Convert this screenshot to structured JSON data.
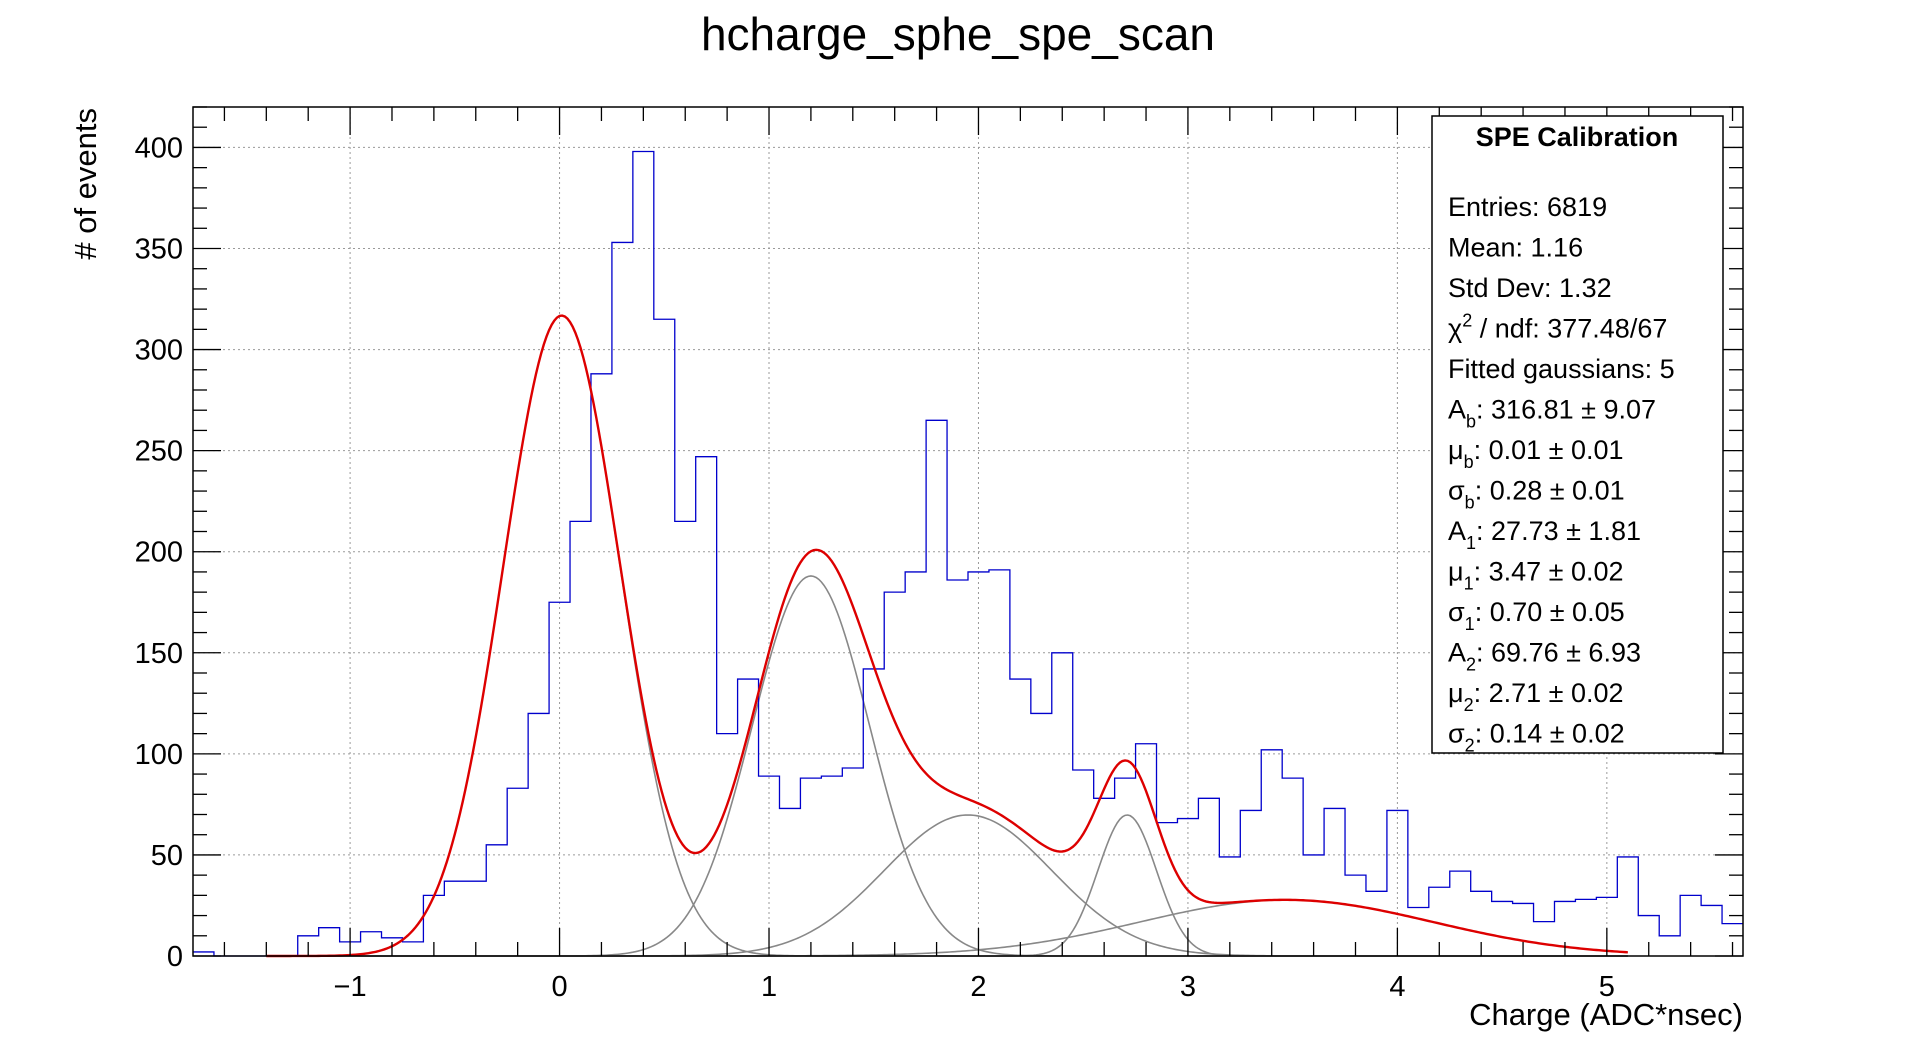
{
  "chart_data": {
    "type": "histogram",
    "title": "hcharge_sphe_spe_scan",
    "xlabel": "Charge (ADC*nsec)",
    "ylabel": "# of events",
    "xlim": [
      -1.75,
      5.65
    ],
    "ylim": [
      0,
      420
    ],
    "grid": true,
    "x_ticks": [
      -1,
      0,
      1,
      2,
      3,
      4,
      5
    ],
    "x_tick_labels": [
      "−1",
      "0",
      "1",
      "2",
      "3",
      "4",
      "5"
    ],
    "y_ticks": [
      0,
      50,
      100,
      150,
      200,
      250,
      300,
      350,
      400
    ],
    "y_tick_labels": [
      "0",
      "50",
      "100",
      "150",
      "200",
      "250",
      "300",
      "350",
      "400"
    ],
    "histogram": {
      "name": "hcharge_sphe_spe_scan",
      "color": "#0000cc",
      "bin_start": -1.75,
      "bin_width": 0.1,
      "counts": [
        2,
        0,
        0,
        0,
        0,
        10,
        14,
        7,
        12,
        9,
        7,
        30,
        37,
        37,
        55,
        83,
        120,
        175,
        215,
        288,
        353,
        398,
        315,
        215,
        247,
        110,
        137,
        89,
        73,
        88,
        89,
        93,
        142,
        180,
        190,
        265,
        186,
        190,
        191,
        137,
        120,
        150,
        92,
        78,
        88,
        105,
        66,
        68,
        78,
        49,
        72,
        102,
        88,
        50,
        73,
        40,
        32,
        72,
        24,
        34,
        42,
        32,
        27,
        26,
        17,
        27,
        28,
        29,
        49,
        20,
        10,
        30,
        25,
        16,
        6,
        11,
        17,
        13,
        12,
        17,
        17,
        13,
        12,
        14,
        10,
        15
      ]
    },
    "fit": {
      "color": "#dd0000",
      "range": [
        -1.4,
        5.1
      ],
      "components_color": "#888888",
      "components": [
        {
          "A": 316.81,
          "mu": 0.01,
          "sigma": 0.28
        },
        {
          "A": 188.0,
          "mu": 1.2,
          "sigma": 0.28
        },
        {
          "A": 69.76,
          "mu": 1.95,
          "sigma": 0.4
        },
        {
          "A": 69.76,
          "mu": 2.71,
          "sigma": 0.14
        },
        {
          "A": 27.73,
          "mu": 3.47,
          "sigma": 0.7
        }
      ]
    },
    "stats_box": {
      "placement": "top-right",
      "title": "SPE Calibration",
      "lines": [
        {
          "text": "Entries: 6819"
        },
        {
          "text": "Mean: 1.16"
        },
        {
          "text": "Std Dev: 1.32"
        },
        {
          "sym": "χ",
          "sup": "2",
          "text": " / ndf: 377.48/67"
        },
        {
          "text": "Fitted gaussians: 5"
        },
        {
          "sym": "A",
          "sub": "b",
          "text": ": 316.81 ± 9.07"
        },
        {
          "sym": "μ",
          "sub": "b",
          "text": ": 0.01 ± 0.01"
        },
        {
          "sym": "σ",
          "sub": "b",
          "text": ": 0.28 ± 0.01"
        },
        {
          "sym": "A",
          "sub": "1",
          "text": ": 27.73 ± 1.81"
        },
        {
          "sym": "μ",
          "sub": "1",
          "text": ": 3.47 ± 0.02"
        },
        {
          "sym": "σ",
          "sub": "1",
          "text": ": 0.70 ± 0.05"
        },
        {
          "sym": "A",
          "sub": "2",
          "text": ": 69.76 ± 6.93"
        },
        {
          "sym": "μ",
          "sub": "2",
          "text": ": 2.71 ± 0.02"
        },
        {
          "sym": "σ",
          "sub": "2",
          "text": ": 0.14 ± 0.02"
        }
      ]
    }
  }
}
